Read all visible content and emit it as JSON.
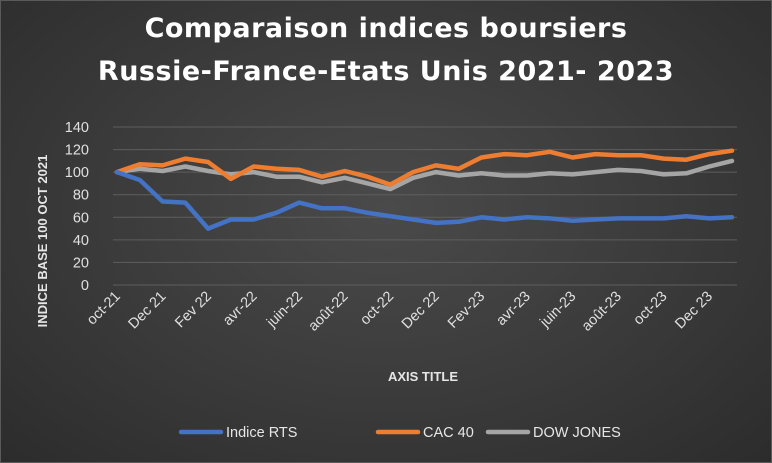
{
  "chart_data": {
    "type": "line",
    "title_lines": [
      "Comparaison indices boursiers",
      "Russie-France-Etats Unis 2021- 2023"
    ],
    "xlabel": "AXIS TITLE",
    "ylabel": "INDICE BASE 100 OCT 2021",
    "ylim": [
      0,
      140
    ],
    "yticks": [
      0,
      20,
      40,
      60,
      80,
      100,
      120,
      140
    ],
    "grid": true,
    "legend_position": "bottom",
    "x_tick_labels": [
      "oct-21",
      "Dec 21",
      "Fev 22",
      "avr-22",
      "juin-22",
      "août-22",
      "oct-22",
      "Dec 22",
      "Fev-23",
      "avr-23",
      "juin-23",
      "août-23",
      "oct-23",
      "Dec 23"
    ],
    "series": [
      {
        "name": "Indice RTS",
        "color": "#4472c4",
        "values": [
          100,
          93,
          74,
          73,
          50,
          58,
          58,
          64,
          73,
          68,
          68,
          64,
          61,
          58,
          55,
          56,
          60,
          58,
          60,
          59,
          57,
          58,
          59,
          59,
          59,
          61,
          59,
          60
        ]
      },
      {
        "name": "CAC 40",
        "color": "#ed7d31",
        "values": [
          100,
          107,
          106,
          112,
          109,
          94,
          105,
          103,
          102,
          96,
          101,
          96,
          89,
          100,
          106,
          103,
          113,
          116,
          115,
          118,
          113,
          116,
          115,
          115,
          112,
          111,
          116,
          119
        ]
      },
      {
        "name": "DOW JONES",
        "color": "#a5a5a5",
        "values": [
          100,
          103,
          101,
          105,
          101,
          98,
          100,
          96,
          96,
          91,
          95,
          90,
          85,
          95,
          100,
          97,
          99,
          97,
          97,
          99,
          98,
          100,
          102,
          101,
          98,
          99,
          105,
          110
        ]
      }
    ]
  }
}
